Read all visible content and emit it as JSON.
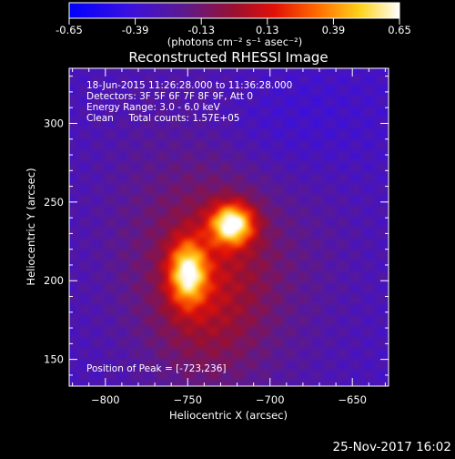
{
  "colorbar": {
    "tick_labels": [
      "-0.65",
      "-0.39",
      "-0.13",
      "0.13",
      "0.39",
      "0.65"
    ],
    "tick_values": [
      -0.65,
      -0.39,
      -0.13,
      0.13,
      0.39,
      0.65
    ],
    "range": [
      -0.65,
      0.65
    ],
    "units_label": "(photons cm⁻² s⁻¹ asec⁻²)"
  },
  "chart_data": {
    "type": "heatmap",
    "title": "Reconstructed RHESSI Image",
    "xlabel": "Heliocentric X (arcsec)",
    "ylabel": "Heliocentric Y (arcsec)",
    "xlim": [
      -822,
      -628
    ],
    "ylim": [
      133,
      335
    ],
    "x_ticks": [
      -800,
      -750,
      -700,
      -650
    ],
    "x_tick_labels": [
      "−800",
      "−750",
      "−700",
      "−650"
    ],
    "y_ticks": [
      150,
      200,
      250,
      300
    ],
    "y_tick_labels": [
      "150",
      "200",
      "250",
      "300"
    ],
    "colormap": "fire (blue-purple-red-yellow-white)",
    "sources": [
      {
        "x": -723,
        "y": 236,
        "peak": 0.65
      },
      {
        "x": -750,
        "y": 205,
        "peak": 0.55
      }
    ],
    "annotation_lines": [
      "18-Jun-2015 11:26:28.000 to 11:36:28.000",
      "Detectors: 3F 5F 6F 7F 8F 9F, Att 0",
      "Energy Range: 3.0 - 6.0 keV",
      "Clean     Total counts: 1.57E+05"
    ],
    "peak_text": "Position of Peak = [-723,236]",
    "timestamp": "25-Nov-2017 16:02"
  }
}
